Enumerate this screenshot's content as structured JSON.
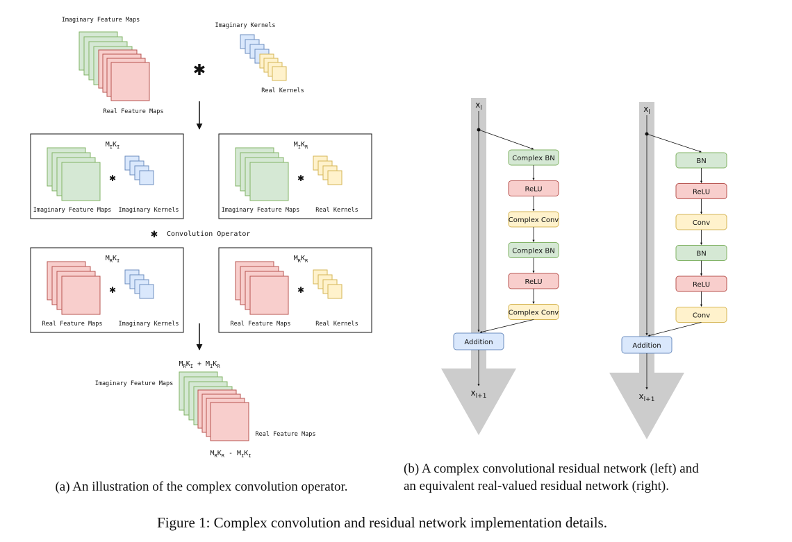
{
  "panel_a": {
    "top": {
      "imag_maps_label": "Imaginary Feature Maps",
      "real_maps_label": "Real Feature Maps",
      "imag_kernels_label": "Imaginary Kernels",
      "real_kernels_label": "Real Kernels",
      "operator_symbol": "✱"
    },
    "boxes": [
      {
        "title_main": "M",
        "title_sub1": "I",
        "title_k": "K",
        "title_sub2": "I",
        "maps_label": "Imaginary Feature Maps",
        "kernels_label": "Imaginary Kernels",
        "maps_kind": "imaginary",
        "kernels_kind": "imaginary"
      },
      {
        "title_main": "M",
        "title_sub1": "I",
        "title_k": "K",
        "title_sub2": "R",
        "maps_label": "Imaginary Feature Maps",
        "kernels_label": "Real Kernels",
        "maps_kind": "imaginary",
        "kernels_kind": "real"
      },
      {
        "title_main": "M",
        "title_sub1": "R",
        "title_k": "K",
        "title_sub2": "I",
        "maps_label": "Real Feature Maps",
        "kernels_label": "Imaginary Kernels",
        "maps_kind": "real",
        "kernels_kind": "imaginary"
      },
      {
        "title_main": "M",
        "title_sub1": "R",
        "title_k": "K",
        "title_sub2": "R",
        "maps_label": "Real Feature Maps",
        "kernels_label": "Real Kernels",
        "maps_kind": "real",
        "kernels_kind": "real"
      }
    ],
    "legend": {
      "symbol": "✱",
      "label": "Convolution Operator"
    },
    "bottom": {
      "eq_top": {
        "a": "M",
        "a_sub": "R",
        "b": "K",
        "b_sub": "I",
        "op": " + ",
        "c": "M",
        "c_sub": "I",
        "d": "K",
        "d_sub": "R"
      },
      "eq_bottom": {
        "a": "M",
        "a_sub": "R",
        "b": "K",
        "b_sub": "R",
        "op": " - ",
        "c": "M",
        "c_sub": "I",
        "d": "K",
        "d_sub": "I"
      },
      "imag_maps_label": "Imaginary Feature Maps",
      "real_maps_label": "Real Feature Maps"
    },
    "caption": "(a) An illustration of the complex convolution operator."
  },
  "panel_b": {
    "left_net": {
      "input": {
        "main": "x",
        "sub": "l"
      },
      "output": {
        "main": "x",
        "sub": "l+1"
      },
      "blocks": [
        {
          "label": "Complex BN",
          "kind": "bn"
        },
        {
          "label": "ReLU",
          "kind": "relu"
        },
        {
          "label": "Complex Conv",
          "kind": "conv"
        },
        {
          "label": "Complex BN",
          "kind": "bn"
        },
        {
          "label": "ReLU",
          "kind": "relu"
        },
        {
          "label": "Complex Conv",
          "kind": "conv"
        }
      ],
      "addition": "Addition"
    },
    "right_net": {
      "input": {
        "main": "x",
        "sub": "l"
      },
      "output": {
        "main": "x",
        "sub": "l+1"
      },
      "blocks": [
        {
          "label": "BN",
          "kind": "bn"
        },
        {
          "label": "ReLU",
          "kind": "relu"
        },
        {
          "label": "Conv",
          "kind": "conv"
        },
        {
          "label": "BN",
          "kind": "bn"
        },
        {
          "label": "ReLU",
          "kind": "relu"
        },
        {
          "label": "Conv",
          "kind": "conv"
        }
      ],
      "addition": "Addition"
    },
    "caption_line1": "(b) A complex convolutional residual network (left) and",
    "caption_line2": "an equivalent real-valued residual network (right)."
  },
  "figure_caption": "Figure 1: Complex convolution and residual network implementation details.",
  "colors": {
    "green_fill": "#d5e8d4",
    "green_stroke": "#82b366",
    "red_fill": "#f8cecc",
    "red_stroke": "#b85450",
    "blue_fill": "#dae8fc",
    "blue_stroke": "#6c8ebf",
    "yellow_fill": "#fff2cc",
    "yellow_stroke": "#d6b656",
    "grey_arrow": "#cccccc"
  }
}
